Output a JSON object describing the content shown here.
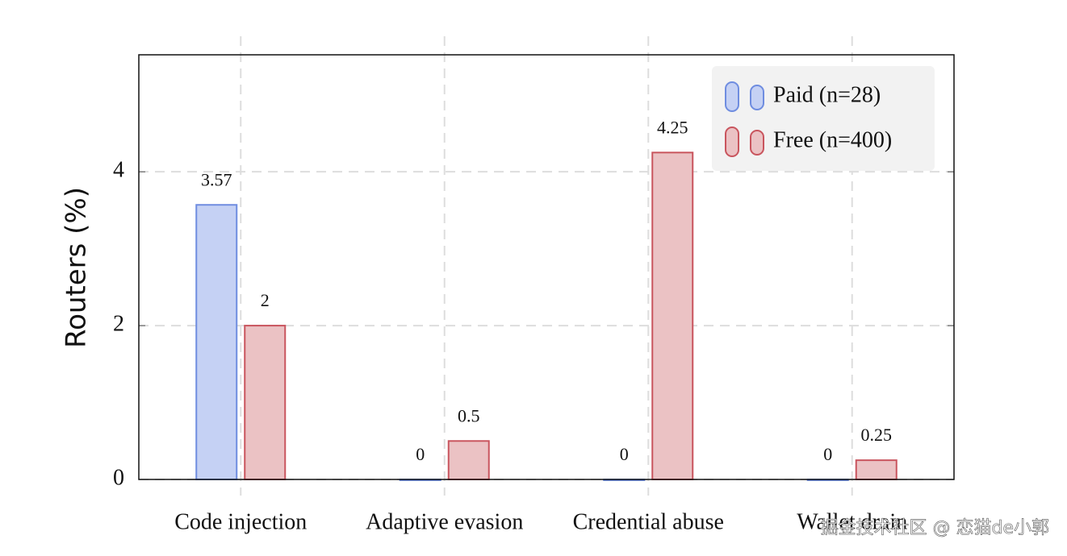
{
  "chart_data": {
    "type": "bar",
    "y_label": "Routers (%)",
    "categories": [
      "Code injection",
      "Adaptive evasion",
      "Credential abuse",
      "Wallet drain"
    ],
    "series": [
      {
        "name": "Paid (n=28)",
        "color": "#6f8de0",
        "values": [
          3.57,
          0,
          0,
          0
        ]
      },
      {
        "name": "Free (n=400)",
        "color": "#c9555e",
        "values": [
          2,
          0.5,
          4.25,
          0.25
        ]
      }
    ],
    "ylim": [
      0,
      5.5
    ],
    "yticks": [
      0,
      2,
      4
    ],
    "grid": true,
    "legend": "top-right",
    "watermark": "掘金技术社区 @ 恋猫de小郭"
  }
}
